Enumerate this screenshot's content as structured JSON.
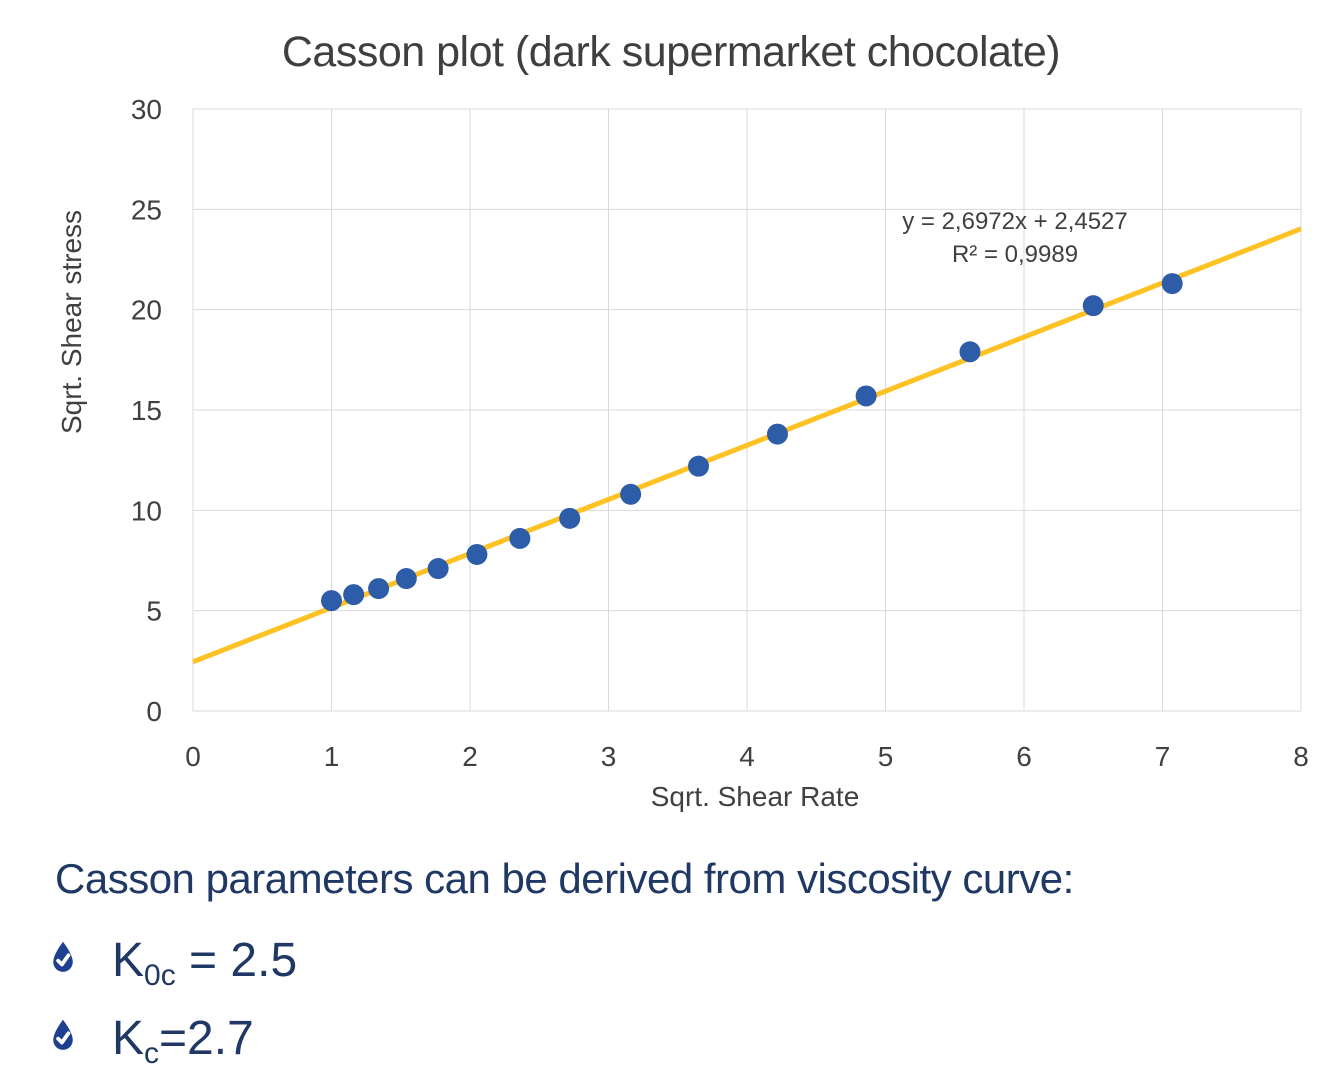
{
  "chart_data": {
    "type": "scatter",
    "title": "Casson plot (dark supermarket chocolate)",
    "xlabel": "Sqrt. Shear Rate",
    "ylabel": "Sqrt. Shear stress",
    "xlim": [
      0,
      8
    ],
    "ylim": [
      0,
      30
    ],
    "xticks": [
      0,
      1,
      2,
      3,
      4,
      5,
      6,
      7,
      8
    ],
    "yticks": [
      0,
      5,
      10,
      15,
      20,
      25,
      30
    ],
    "grid": true,
    "legend": "none",
    "points": [
      [
        1.0,
        5.5
      ],
      [
        1.16,
        5.8
      ],
      [
        1.34,
        6.1
      ],
      [
        1.54,
        6.6
      ],
      [
        1.77,
        7.1
      ],
      [
        2.05,
        7.8
      ],
      [
        2.36,
        8.6
      ],
      [
        2.72,
        9.6
      ],
      [
        3.16,
        10.8
      ],
      [
        3.65,
        12.2
      ],
      [
        4.22,
        13.8
      ],
      [
        4.86,
        15.7
      ],
      [
        5.61,
        17.9
      ],
      [
        6.5,
        20.2
      ],
      [
        7.07,
        21.3
      ]
    ],
    "trendline": {
      "slope": 2.6972,
      "intercept": 2.4527,
      "equation_label": "y = 2,6972x + 2,4527",
      "r_squared_label": "R² = 0,9989"
    },
    "colors": {
      "marker": "#2d5ca8",
      "trendline": "#ffc224",
      "grid": "#d9d9d9",
      "axis_text": "#404040",
      "title_text": "#3f3f3f"
    }
  },
  "notes": {
    "heading": "Casson parameters can be derived from viscosity curve:",
    "bullet_icon": "drop-check-icon",
    "text_color": "#1f3864",
    "icon_color": "#1e408f",
    "items": [
      {
        "symbol": "K",
        "subscript": "0c",
        "value": " = 2.5"
      },
      {
        "symbol": "K",
        "subscript": "c",
        "value": "=2.7"
      }
    ]
  }
}
